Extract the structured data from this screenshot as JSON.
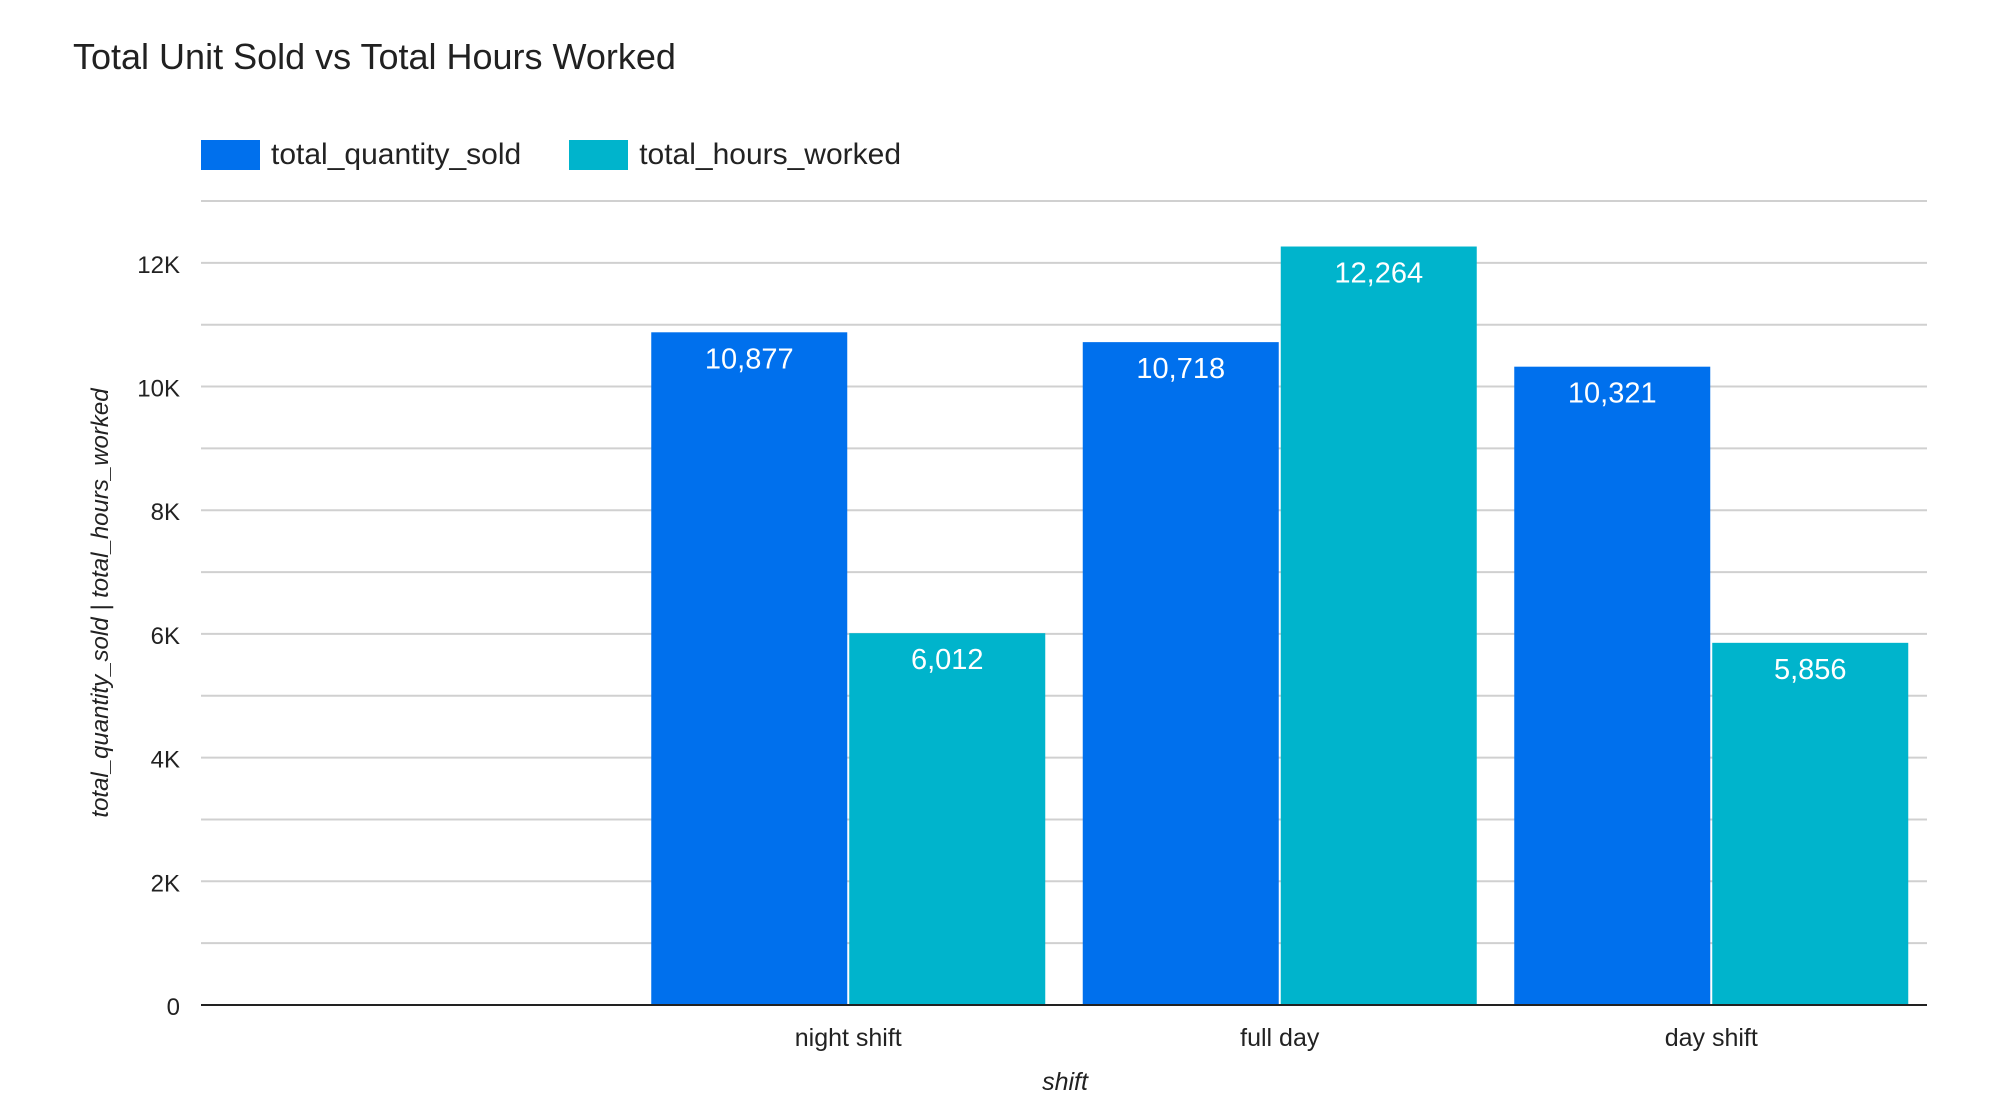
{
  "chart_data": {
    "type": "bar",
    "title": "Total Unit Sold vs Total Hours Worked",
    "xlabel": "shift",
    "ylabel": "total_quantity_sold | total_hours_worked",
    "categories": [
      "",
      "night shift",
      "full day",
      "day shift"
    ],
    "series": [
      {
        "name": "total_quantity_sold",
        "color": "#0070ED",
        "values": [
          null,
          10877,
          10718,
          10321
        ],
        "labels": [
          "",
          "10,877",
          "10,718",
          "10,321"
        ]
      },
      {
        "name": "total_hours_worked",
        "color": "#00B4CC",
        "values": [
          null,
          6012,
          12264,
          5856
        ],
        "labels": [
          "",
          "6,012",
          "12,264",
          "5,856"
        ]
      }
    ],
    "ylim": [
      0,
      13000
    ],
    "yticks": [
      0,
      2000,
      4000,
      6000,
      8000,
      10000,
      12000
    ],
    "ytick_labels": [
      "0",
      "2K",
      "4K",
      "6K",
      "8K",
      "10K",
      "12K"
    ],
    "minor_gridlines": [
      1000,
      3000,
      5000,
      7000,
      9000,
      11000,
      13000
    ],
    "grid": true,
    "legend_position": "top-left",
    "colors": {
      "gridline": "#D0D0D0",
      "axis": "#222222",
      "bar_label": "#FFFFFF"
    }
  }
}
